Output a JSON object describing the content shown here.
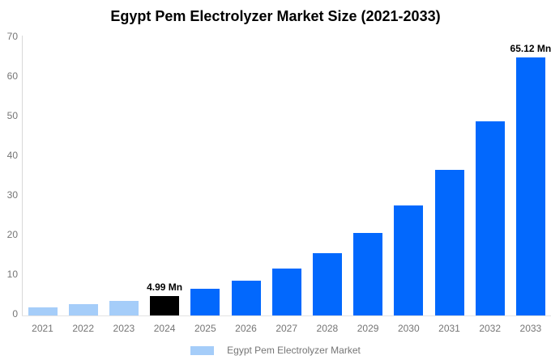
{
  "chart_data": {
    "type": "bar",
    "title": "Egypt Pem Electrolyzer Market Size (2021-2033)",
    "categories": [
      "2021",
      "2022",
      "2023",
      "2024",
      "2025",
      "2026",
      "2027",
      "2028",
      "2029",
      "2030",
      "2031",
      "2032",
      "2033"
    ],
    "values": [
      2.12,
      2.82,
      3.75,
      4.99,
      6.64,
      8.83,
      11.75,
      15.63,
      20.79,
      27.66,
      36.79,
      48.94,
      65.12
    ],
    "unit": "Mn",
    "xlabel": "",
    "ylabel": "",
    "ylim": [
      0,
      70
    ],
    "yticks": [
      0,
      10,
      20,
      30,
      40,
      50,
      60,
      70
    ],
    "grid": false,
    "annotations": {
      "2024": "4.99 Mn",
      "2033": "65.12 Mn"
    },
    "bar_colors": [
      "#a5cdf9",
      "#a5cdf9",
      "#a5cdf9",
      "#000000",
      "#0268fd",
      "#0268fd",
      "#0268fd",
      "#0268fd",
      "#0268fd",
      "#0268fd",
      "#0268fd",
      "#0268fd",
      "#0268fd"
    ],
    "legend": {
      "label": "Egypt Pem Electrolyzer Market",
      "position": "bottom",
      "swatch_color": "#a5cdf9"
    }
  },
  "colors": {
    "bar_blue": "#0268fd",
    "bar_light_blue": "#a5cdf9",
    "bar_highlight_black": "#000000",
    "axis_text": "#757575",
    "axis_line_vertical": "#d9d9d9",
    "axis_line_baseline": "#e3e3e3",
    "title_text": "#000000",
    "background": "#ffffff"
  }
}
